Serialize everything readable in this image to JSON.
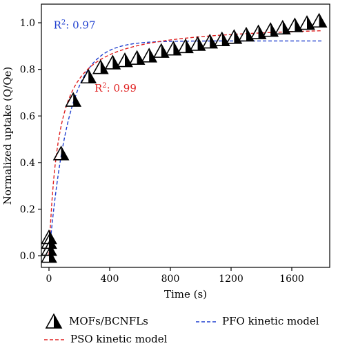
{
  "chart_data": {
    "type": "scatter",
    "xlabel": "Time (s)",
    "ylabel": "Normalized uptake (Q/Qe)",
    "xlim": [
      -50,
      1850
    ],
    "ylim": [
      -0.05,
      1.08
    ],
    "x_ticks": [
      0,
      400,
      800,
      1200,
      1600
    ],
    "x_tick_labels": [
      "0",
      "400",
      "800",
      "1200",
      "1600"
    ],
    "y_ticks": [
      0.0,
      0.2,
      0.4,
      0.6,
      0.8,
      1.0
    ],
    "y_tick_labels": [
      "0.0",
      "0.2",
      "0.4",
      "0.6",
      "0.8",
      "1.0"
    ],
    "series": [
      {
        "name": "MOFs/BCNFLs",
        "kind": "scatter",
        "marker": "half-filled-triangle",
        "color": "#000000",
        "x": [
          0,
          0,
          0,
          0,
          80,
          160,
          260,
          340,
          420,
          500,
          580,
          660,
          740,
          820,
          900,
          980,
          1060,
          1140,
          1220,
          1300,
          1380,
          1460,
          1540,
          1620,
          1700,
          1780
        ],
        "y": [
          0.0,
          0.03,
          0.06,
          0.08,
          0.44,
          0.67,
          0.77,
          0.81,
          0.83,
          0.84,
          0.85,
          0.86,
          0.88,
          0.89,
          0.9,
          0.91,
          0.92,
          0.93,
          0.94,
          0.95,
          0.96,
          0.97,
          0.98,
          0.99,
          1.0,
          1.01
        ]
      },
      {
        "name": "PFO kinetic model",
        "kind": "line",
        "style": "dashed",
        "color": "#1f3fcf",
        "model": "pfo",
        "qe": 0.922,
        "k": 0.0078
      },
      {
        "name": "PSO kinetic model",
        "kind": "line",
        "style": "dashed",
        "color": "#e02020",
        "model": "pso",
        "qe": 1.0,
        "k": 0.0157
      }
    ],
    "annotations": [
      {
        "base": "R",
        "sup": "2",
        "text": ": 0.97",
        "color": "#1f3fcf",
        "x": 30,
        "y": 0.975
      },
      {
        "base": "R",
        "sup": "2",
        "text": ": 0.99",
        "color": "#e02020",
        "x": 300,
        "y": 0.705
      }
    ],
    "legend_position": "bottom",
    "grid": false
  }
}
